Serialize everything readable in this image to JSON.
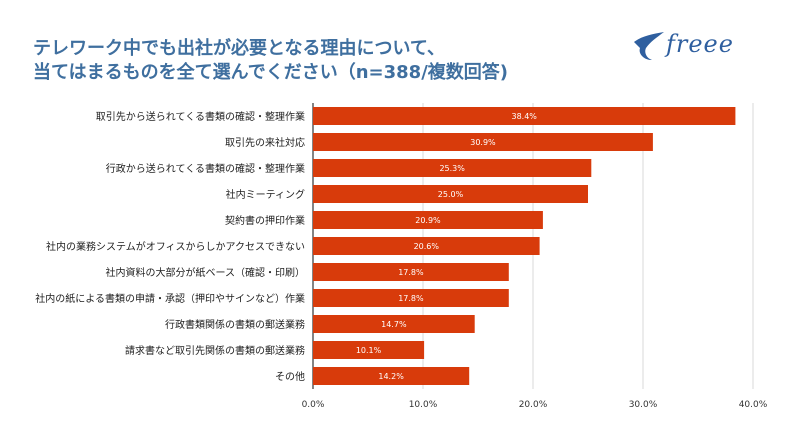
{
  "title": {
    "line1": "テレワーク中でも出社が必要となる理由について、",
    "line2": "当てはまるものを全て選んでください（n=388/複数回答)"
  },
  "logo": {
    "text": "freee",
    "icon": "bird-icon"
  },
  "colors": {
    "bar": "#d83b0b",
    "title": "#3f6f9f",
    "grid": "#d9d9d9",
    "axis": "#333333"
  },
  "chart_data": {
    "type": "bar",
    "orientation": "horizontal",
    "categories": [
      "取引先から送られてくる書類の確認・整理作業",
      "取引先の来社対応",
      "行政から送られてくる書類の確認・整理作業",
      "社内ミーティング",
      "契約書の押印作業",
      "社内の業務システムがオフィスからしかアクセスできない",
      "社内資料の大部分が紙ベース（確認・印刷）",
      "社内の紙による書類の申請・承認（押印やサインなど）作業",
      "行政書類関係の書類の郵送業務",
      "請求書など取引先関係の書類の郵送業務",
      "その他"
    ],
    "values": [
      38.4,
      30.9,
      25.3,
      25.0,
      20.9,
      20.6,
      17.8,
      17.8,
      14.7,
      10.1,
      14.2
    ],
    "value_labels": [
      "38.4%",
      "30.9%",
      "25.3%",
      "25.0%",
      "20.9%",
      "20.6%",
      "17.8%",
      "17.8%",
      "14.7%",
      "10.1%",
      "14.2%"
    ],
    "xlim": [
      0,
      40
    ],
    "xticks": [
      0,
      10,
      20,
      30,
      40
    ],
    "xtick_labels": [
      "0.0%",
      "10.0%",
      "20.0%",
      "30.0%",
      "40.0%"
    ],
    "grid": true,
    "legend": "none"
  }
}
